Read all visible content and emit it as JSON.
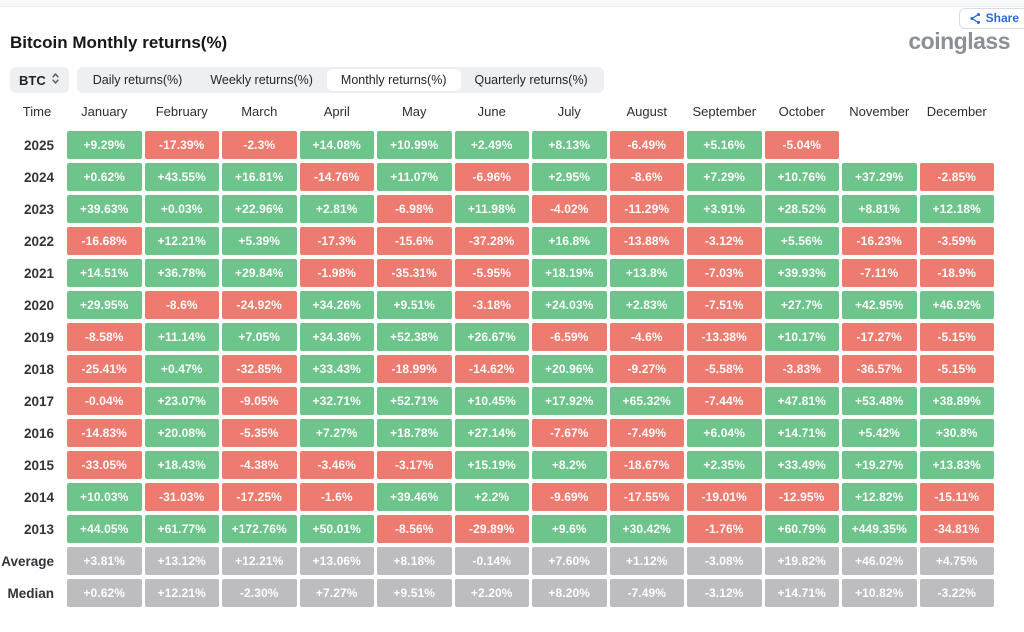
{
  "header": {
    "title": "Bitcoin Monthly returns(%)",
    "brand": "coinglass",
    "share_label": "Share"
  },
  "controls": {
    "symbol": "BTC",
    "tabs": [
      {
        "label": "Daily returns(%)",
        "active": false
      },
      {
        "label": "Weekly returns(%)",
        "active": false
      },
      {
        "label": "Monthly returns(%)",
        "active": true
      },
      {
        "label": "Quarterly returns(%)",
        "active": false
      }
    ]
  },
  "colors": {
    "positive": "#6ec58b",
    "negative": "#ee7b70",
    "neutral": "#bdbdbf"
  },
  "table": {
    "time_header": "Time",
    "months": [
      "January",
      "February",
      "March",
      "April",
      "May",
      "June",
      "July",
      "August",
      "September",
      "October",
      "November",
      "December"
    ],
    "rows": [
      {
        "label": "2025",
        "kind": "year",
        "cells": [
          "+9.29%",
          "-17.39%",
          "-2.3%",
          "+14.08%",
          "+10.99%",
          "+2.49%",
          "+8.13%",
          "-6.49%",
          "+5.16%",
          "-5.04%",
          null,
          null
        ]
      },
      {
        "label": "2024",
        "kind": "year",
        "cells": [
          "+0.62%",
          "+43.55%",
          "+16.81%",
          "-14.76%",
          "+11.07%",
          "-6.96%",
          "+2.95%",
          "-8.6%",
          "+7.29%",
          "+10.76%",
          "+37.29%",
          "-2.85%"
        ]
      },
      {
        "label": "2023",
        "kind": "year",
        "cells": [
          "+39.63%",
          "+0.03%",
          "+22.96%",
          "+2.81%",
          "-6.98%",
          "+11.98%",
          "-4.02%",
          "-11.29%",
          "+3.91%",
          "+28.52%",
          "+8.81%",
          "+12.18%"
        ]
      },
      {
        "label": "2022",
        "kind": "year",
        "cells": [
          "-16.68%",
          "+12.21%",
          "+5.39%",
          "-17.3%",
          "-15.6%",
          "-37.28%",
          "+16.8%",
          "-13.88%",
          "-3.12%",
          "+5.56%",
          "-16.23%",
          "-3.59%"
        ]
      },
      {
        "label": "2021",
        "kind": "year",
        "cells": [
          "+14.51%",
          "+36.78%",
          "+29.84%",
          "-1.98%",
          "-35.31%",
          "-5.95%",
          "+18.19%",
          "+13.8%",
          "-7.03%",
          "+39.93%",
          "-7.11%",
          "-18.9%"
        ]
      },
      {
        "label": "2020",
        "kind": "year",
        "cells": [
          "+29.95%",
          "-8.6%",
          "-24.92%",
          "+34.26%",
          "+9.51%",
          "-3.18%",
          "+24.03%",
          "+2.83%",
          "-7.51%",
          "+27.7%",
          "+42.95%",
          "+46.92%"
        ]
      },
      {
        "label": "2019",
        "kind": "year",
        "cells": [
          "-8.58%",
          "+11.14%",
          "+7.05%",
          "+34.36%",
          "+52.38%",
          "+26.67%",
          "-6.59%",
          "-4.6%",
          "-13.38%",
          "+10.17%",
          "-17.27%",
          "-5.15%"
        ]
      },
      {
        "label": "2018",
        "kind": "year",
        "cells": [
          "-25.41%",
          "+0.47%",
          "-32.85%",
          "+33.43%",
          "-18.99%",
          "-14.62%",
          "+20.96%",
          "-9.27%",
          "-5.58%",
          "-3.83%",
          "-36.57%",
          "-5.15%"
        ]
      },
      {
        "label": "2017",
        "kind": "year",
        "cells": [
          "-0.04%",
          "+23.07%",
          "-9.05%",
          "+32.71%",
          "+52.71%",
          "+10.45%",
          "+17.92%",
          "+65.32%",
          "-7.44%",
          "+47.81%",
          "+53.48%",
          "+38.89%"
        ]
      },
      {
        "label": "2016",
        "kind": "year",
        "cells": [
          "-14.83%",
          "+20.08%",
          "-5.35%",
          "+7.27%",
          "+18.78%",
          "+27.14%",
          "-7.67%",
          "-7.49%",
          "+6.04%",
          "+14.71%",
          "+5.42%",
          "+30.8%"
        ]
      },
      {
        "label": "2015",
        "kind": "year",
        "cells": [
          "-33.05%",
          "+18.43%",
          "-4.38%",
          "-3.46%",
          "-3.17%",
          "+15.19%",
          "+8.2%",
          "-18.67%",
          "+2.35%",
          "+33.49%",
          "+19.27%",
          "+13.83%"
        ]
      },
      {
        "label": "2014",
        "kind": "year",
        "cells": [
          "+10.03%",
          "-31.03%",
          "-17.25%",
          "-1.6%",
          "+39.46%",
          "+2.2%",
          "-9.69%",
          "-17.55%",
          "-19.01%",
          "-12.95%",
          "+12.82%",
          "-15.11%"
        ]
      },
      {
        "label": "2013",
        "kind": "year",
        "cells": [
          "+44.05%",
          "+61.77%",
          "+172.76%",
          "+50.01%",
          "-8.56%",
          "-29.89%",
          "+9.6%",
          "+30.42%",
          "-1.76%",
          "+60.79%",
          "+449.35%",
          "-34.81%"
        ]
      },
      {
        "label": "Average",
        "kind": "summary",
        "cells": [
          "+3.81%",
          "+13.12%",
          "+12.21%",
          "+13.06%",
          "+8.18%",
          "-0.14%",
          "+7.60%",
          "+1.12%",
          "-3.08%",
          "+19.82%",
          "+46.02%",
          "+4.75%"
        ]
      },
      {
        "label": "Median",
        "kind": "summary",
        "cells": [
          "+0.62%",
          "+12.21%",
          "-2.30%",
          "+7.27%",
          "+9.51%",
          "+2.20%",
          "+8.20%",
          "-7.49%",
          "-3.12%",
          "+14.71%",
          "+10.82%",
          "-3.22%"
        ]
      }
    ]
  }
}
